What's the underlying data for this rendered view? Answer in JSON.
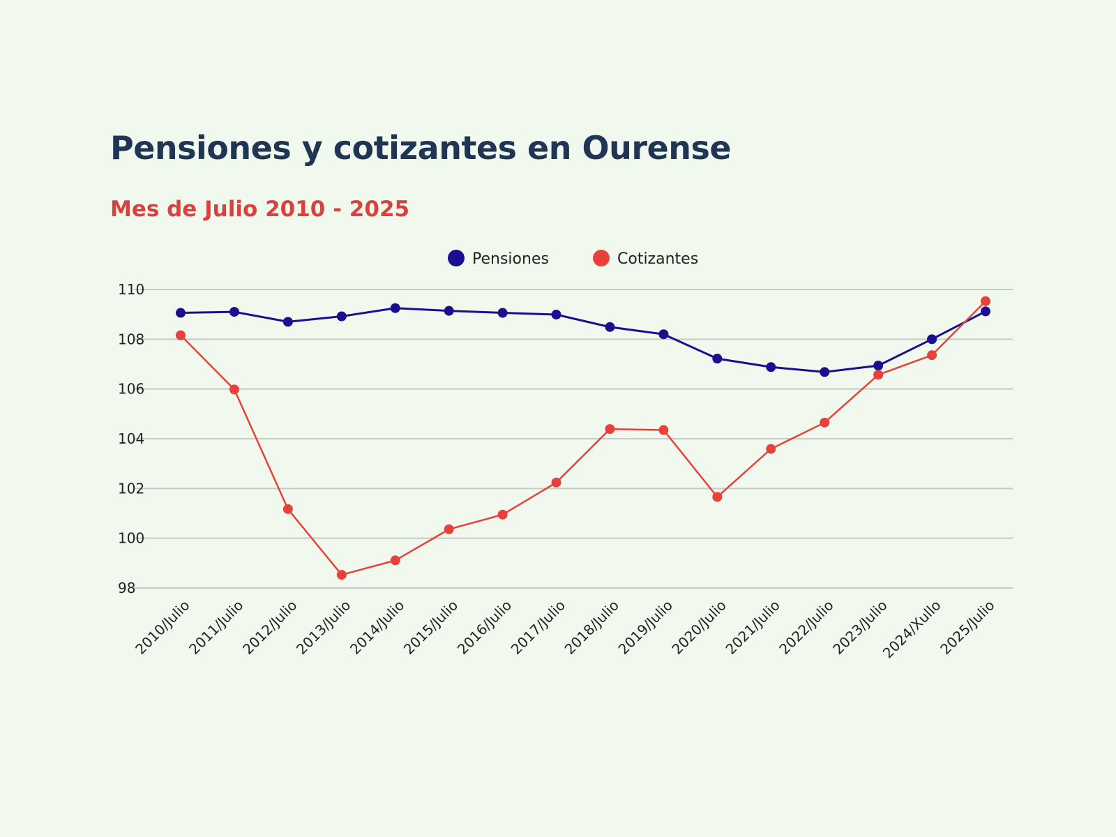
{
  "chart_data": {
    "type": "line",
    "title": "Pensiones y cotizantes en Ourense",
    "subtitle": "Mes de Julio 2010 - 2025",
    "xlabel": "",
    "ylabel": "",
    "categories": [
      "2010/Julio",
      "2011/Julio",
      "2012/Julio",
      "2013/Julio",
      "2014/Julio",
      "2015/Julio",
      "2016/Julio",
      "2017/Julio",
      "2018/Julio",
      "2019/Julio",
      "2020/Julio",
      "2021/Julio",
      "2022/Julio",
      "2023/Julio",
      "2024/Xullo",
      "2025/Julio"
    ],
    "ylim": [
      98,
      110
    ],
    "yticks": [
      98,
      100,
      102,
      104,
      106,
      108,
      110
    ],
    "grid": true,
    "legend_position": "top-center",
    "series": [
      {
        "name": "Pensiones",
        "color": "#1a0f8f",
        "values": [
          109.06,
          109.1,
          108.7,
          108.92,
          109.25,
          109.14,
          109.06,
          108.99,
          108.49,
          108.2,
          107.22,
          106.88,
          106.68,
          106.94,
          108.0,
          109.12
        ]
      },
      {
        "name": "Cotizantes",
        "color": "#e8403a",
        "values": [
          108.16,
          105.98,
          101.17,
          98.53,
          99.11,
          100.36,
          100.95,
          102.24,
          104.39,
          104.35,
          101.66,
          103.59,
          104.65,
          106.57,
          107.36,
          109.53
        ]
      }
    ]
  }
}
